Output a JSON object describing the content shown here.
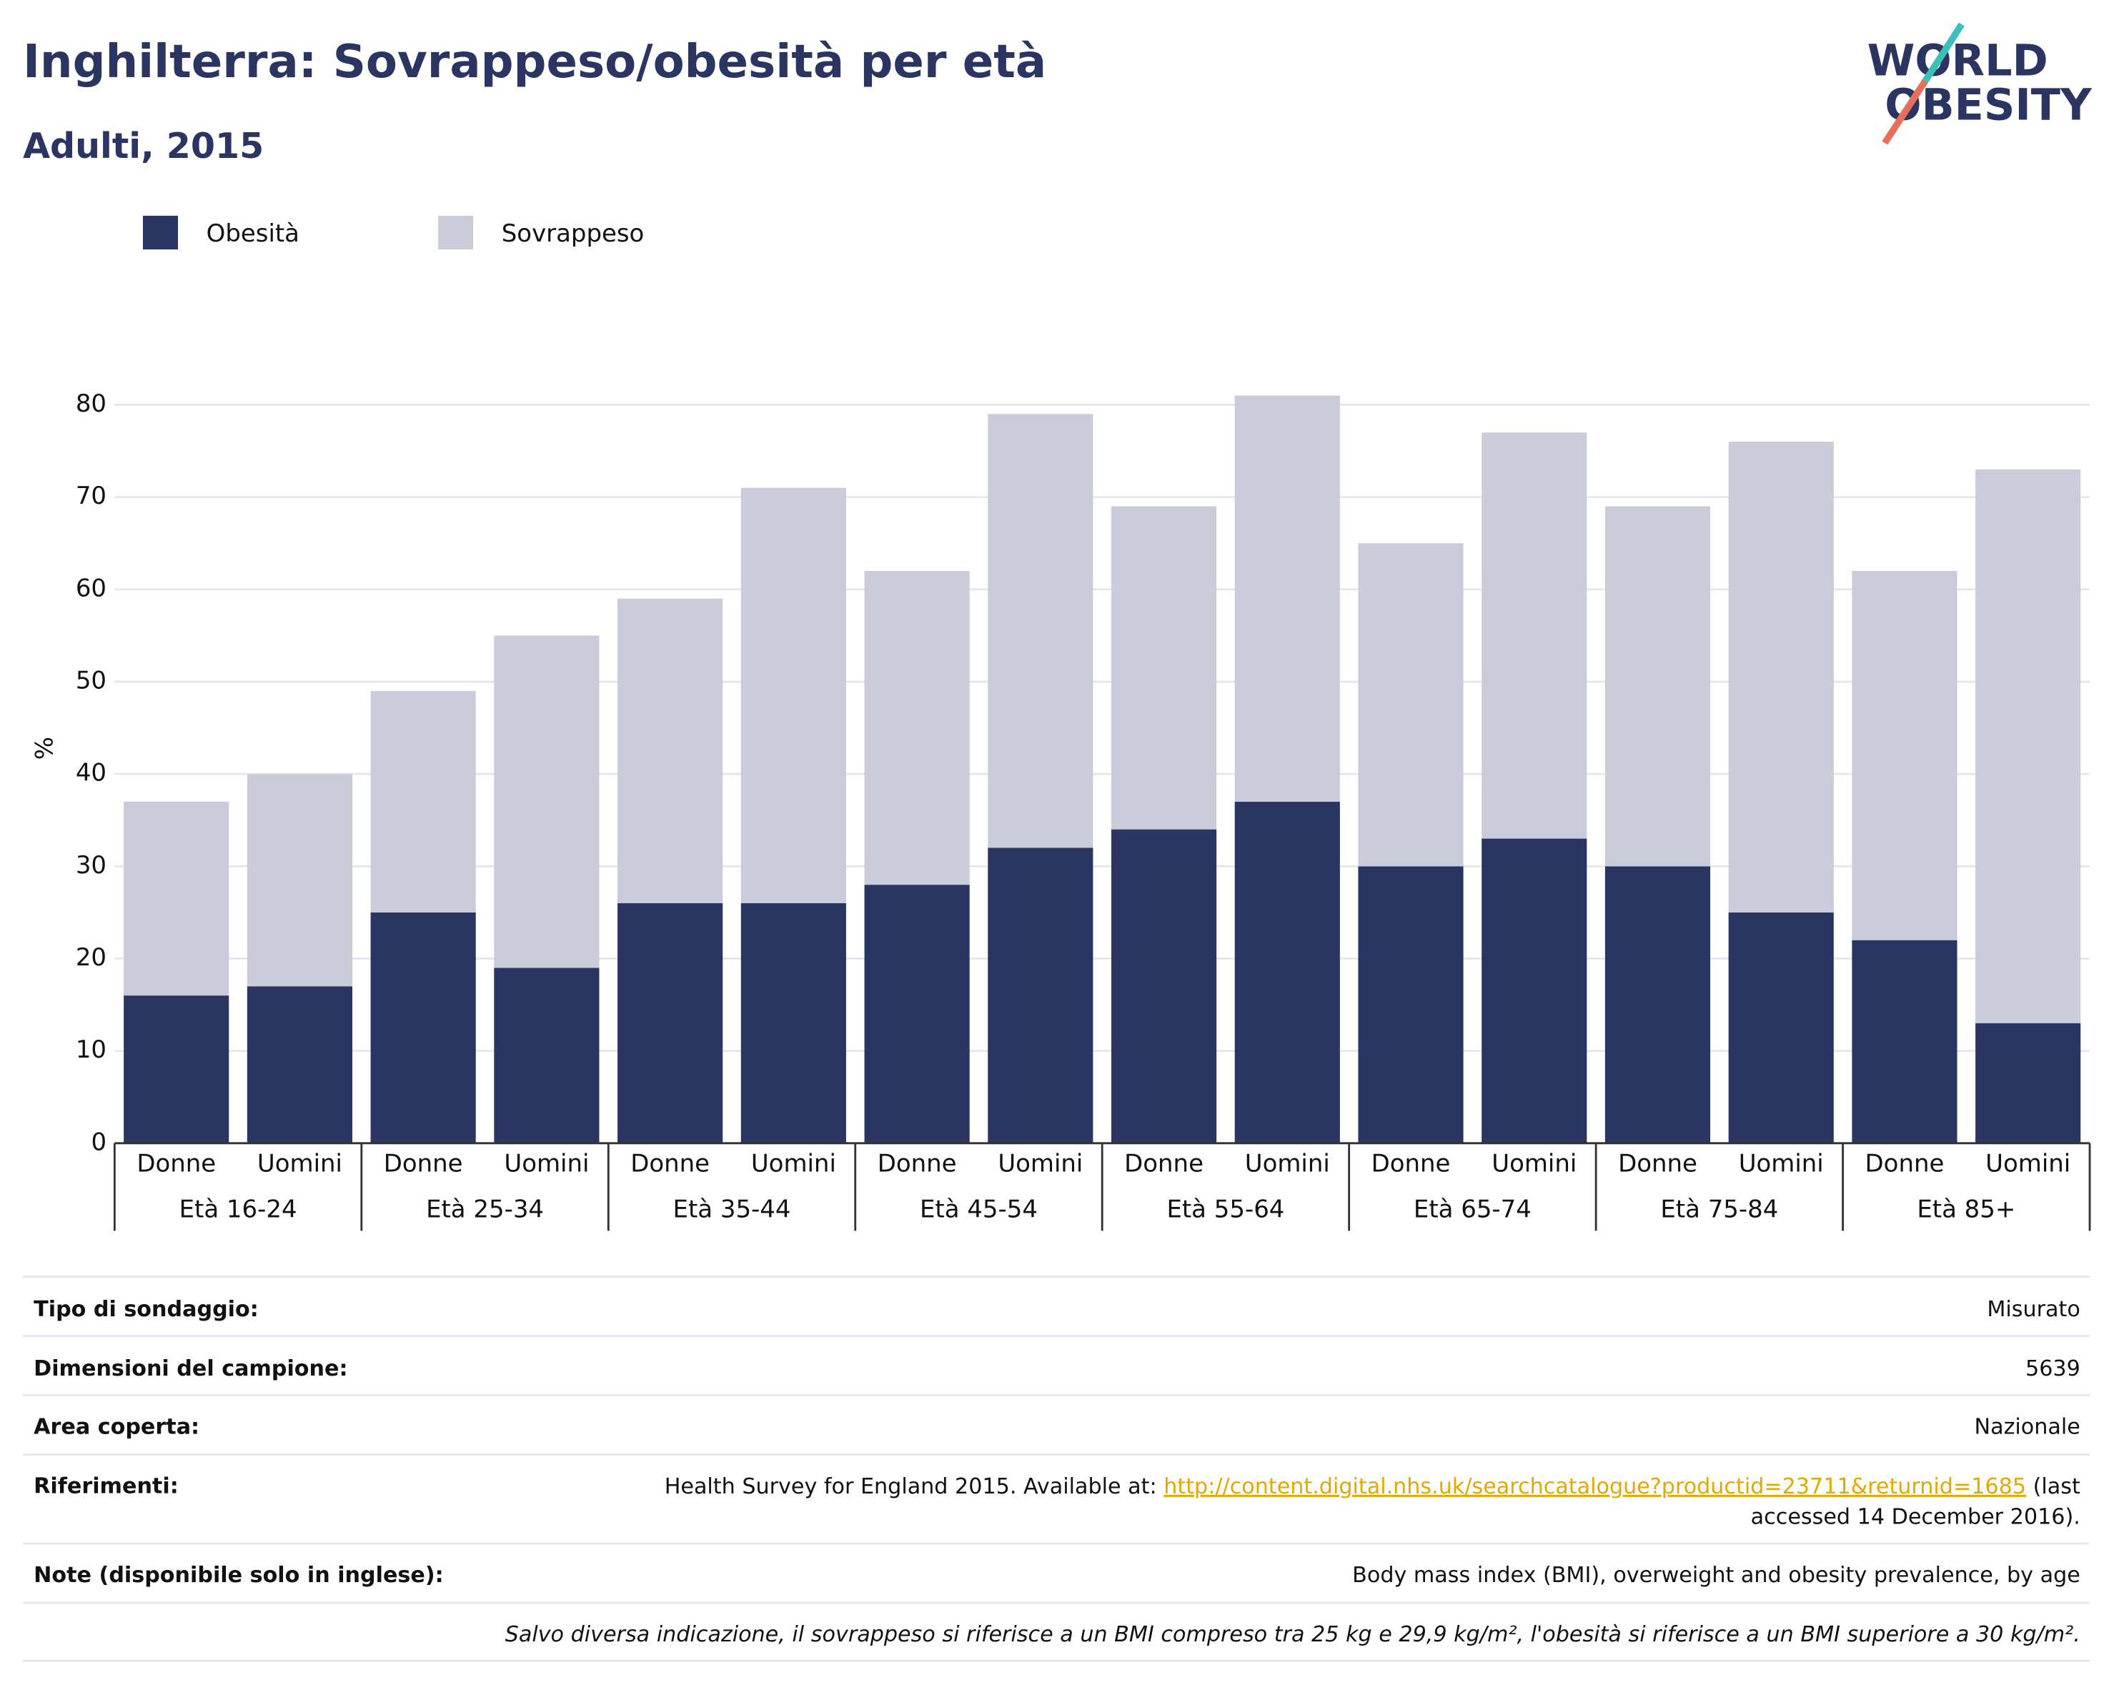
{
  "chart_data": {
    "type": "stacked_bar",
    "title": "Inghilterra: Sovrappeso/obesità per età",
    "subtitle": "Adulti, 2015",
    "logo": [
      "WORLD",
      "OBESITY"
    ],
    "y_label": "%",
    "categories": [
      "Donne",
      "Uomini",
      "Donne",
      "Uomini",
      "Donne",
      "Uomini",
      "Donne",
      "Uomini",
      "Donne",
      "Uomini",
      "Donne",
      "Uomini",
      "Donne",
      "Uomini",
      "Donne",
      "Uomini"
    ],
    "groups": [
      "Età 16-24",
      "Età 25-34",
      "Età 35-44",
      "Età 45-54",
      "Età 55-64",
      "Età 65-74",
      "Età 75-84",
      "Età 85+"
    ],
    "series": [
      {
        "name": "Obesità",
        "color": "#2a3561",
        "values": [
          16,
          17,
          25,
          19,
          26,
          26,
          28,
          32,
          34,
          37,
          30,
          33,
          30,
          25,
          22,
          13
        ]
      },
      {
        "name": "Sovrappeso",
        "color": "#cbccd9",
        "values": [
          21,
          23,
          24,
          36,
          33,
          45,
          34,
          47,
          35,
          44,
          35,
          44,
          39,
          51,
          40,
          60
        ]
      }
    ],
    "ylim": [
      0,
      85
    ],
    "yticks": [
      0,
      10,
      20,
      30,
      40,
      50,
      60,
      70,
      80
    ],
    "grid": true
  },
  "table": {
    "rows": [
      [
        "Tipo di sondaggio:",
        "Misurato"
      ],
      [
        "Dimensioni del campione:",
        "5639"
      ],
      [
        "Area coperta:",
        "Nazionale"
      ],
      [
        "Riferimenti:",
        "Health Survey for England 2015. Available at: ",
        "http://content.digital.nhs.uk/searchcatalogue?productid=23711&returnid=1685",
        " (last",
        "accessed 14 December 2016)."
      ],
      [
        "Note (disponibile solo in inglese):",
        "Body mass index (BMI), overweight and obesity prevalence, by age"
      ]
    ],
    "footnote": "Salvo diversa indicazione, il sovrappeso si riferisce a un BMI compreso tra 25 kg e 29,9 kg/m², l'obesità si riferisce a un BMI superiore a 30 kg/m²."
  }
}
